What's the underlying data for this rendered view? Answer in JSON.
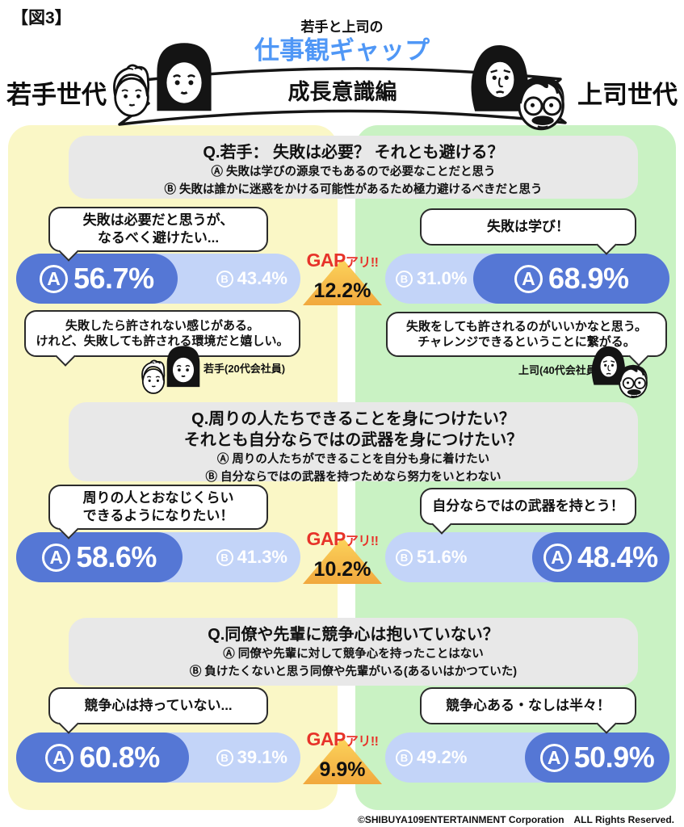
{
  "header": {
    "fig_label": "【図3】",
    "subtitle": "若手と上司の",
    "title": "仕事観ギャップ",
    "banner": "成長意識編",
    "left_group": "若手世代",
    "right_group": "上司世代"
  },
  "labels": {
    "a": "A",
    "b": "B"
  },
  "gap": {
    "prefix": "GAP",
    "suffix": "アリ!!"
  },
  "colors": {
    "title_blue": "#4f97f6",
    "young_panel_yellow": "#faf7c6",
    "boss_panel_green": "#c9f2c3",
    "question_box_gray": "#e8e8e8",
    "bar_dark_blue": "#5577d5",
    "bar_light_blue": "#c3d4f8",
    "gap_triangle_orange": "#f1a83d",
    "gap_text_red": "#e7332a"
  },
  "sections": [
    {
      "q1": "Q.若手： 失敗は必要？ それとも避ける？",
      "opt_a": "Ⓐ 失敗は学びの源泉でもあるので必要なことだと思う",
      "opt_b": "Ⓑ 失敗は誰かに迷惑をかける可能性があるため極力避けるべきだと思う",
      "young": {
        "bubble": [
          "失敗は必要だと思うが、",
          "なるべく避けたい..."
        ],
        "a_pct": "56.7%",
        "b_pct": "43.4%",
        "a_val": 56.7,
        "b_val": 43.4
      },
      "boss": {
        "bubble": [
          "失敗は学び！"
        ],
        "a_pct": "68.9%",
        "b_pct": "31.0%",
        "a_val": 68.9,
        "b_val": 31.0
      },
      "gap_pct": "12.2%",
      "young_quote": {
        "lines": [
          "失敗したら許されない感じがある。",
          "けれど、失敗しても許される環境だと嬉しい。"
        ],
        "who": "若手(20代会社員)"
      },
      "boss_quote": {
        "lines": [
          "失敗をしても許されるのがいいかなと思う。",
          "チャレンジできるということに繋がる。"
        ],
        "who": "上司(40代会社員)"
      }
    },
    {
      "q1": "Q.周りの人たちできることを身につけたい？",
      "q2": "それとも自分ならではの武器を身につけたい？",
      "opt_a": "Ⓐ 周りの人たちができることを自分も身に着けたい",
      "opt_b": "Ⓑ 自分ならではの武器を持つためなら努力をいとわない",
      "young": {
        "bubble": [
          "周りの人とおなじくらい",
          "できるようになりたい！"
        ],
        "a_pct": "58.6%",
        "b_pct": "41.3%",
        "a_val": 58.6,
        "b_val": 41.3
      },
      "boss": {
        "bubble": [
          "自分ならではの武器を持とう！"
        ],
        "a_pct": "48.4%",
        "b_pct": "51.6%",
        "a_val": 48.4,
        "b_val": 51.6
      },
      "gap_pct": "10.2%"
    },
    {
      "q1": "Q.同僚や先輩に競争心は抱いていない？",
      "opt_a": "Ⓐ 同僚や先輩に対して競争心を持ったことはない",
      "opt_b": "Ⓑ 負けたくないと思う同僚や先輩がいる(あるいはかつていた)",
      "young": {
        "bubble": [
          "競争心は持っていない..."
        ],
        "a_pct": "60.8%",
        "b_pct": "39.1%",
        "a_val": 60.8,
        "b_val": 39.1
      },
      "boss": {
        "bubble": [
          "競争心ある・なしは半々！"
        ],
        "a_pct": "50.9%",
        "b_pct": "49.2%",
        "a_val": 50.9,
        "b_val": 49.2
      },
      "gap_pct": "9.9%"
    }
  ],
  "footer": "©SHIBUYA109ENTERTAINMENT Corporation　ALL Rights Reserved.",
  "chart_data": {
    "type": "bar",
    "title": "若手と上司の仕事観ギャップ 成長意識編",
    "unit": "%",
    "categories": [
      "Q.若手： 失敗は必要？ それとも避ける？",
      "Q.周りの人たちできることを身につけたい？それとも自分ならではの武器を身につけたい？",
      "Q.同僚や先輩に競争心は抱いていない？"
    ],
    "series": [
      {
        "name": "若手世代 Ⓐ",
        "values": [
          56.7,
          58.6,
          60.8
        ]
      },
      {
        "name": "若手世代 Ⓑ",
        "values": [
          43.4,
          41.3,
          39.1
        ]
      },
      {
        "name": "上司世代 Ⓐ",
        "values": [
          68.9,
          48.4,
          50.9
        ]
      },
      {
        "name": "上司世代 Ⓑ",
        "values": [
          31.0,
          51.6,
          49.2
        ]
      }
    ],
    "gaps": [
      12.2,
      10.2,
      9.9
    ],
    "legend_position": "none",
    "axis_range": [
      0,
      100
    ]
  }
}
